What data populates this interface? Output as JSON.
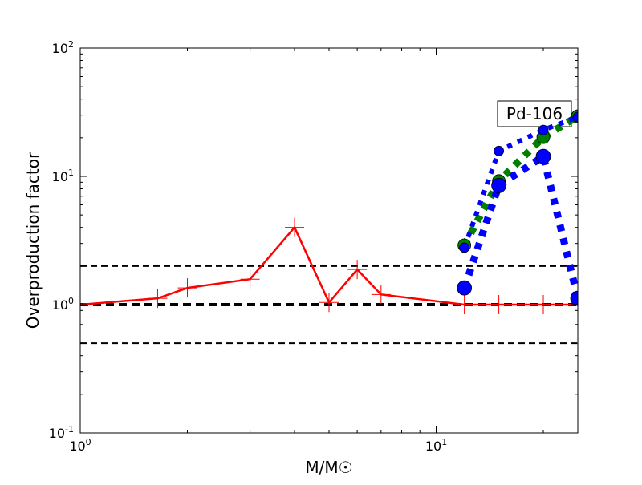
{
  "chart_data": {
    "type": "line",
    "xlabel": "M/M☉",
    "ylabel": "Overproduction factor",
    "xscale": "log",
    "yscale": "log",
    "xlim": [
      1,
      25
    ],
    "ylim": [
      0.1,
      100
    ],
    "xticks": [
      {
        "v": 1,
        "base": "10",
        "exp": "0"
      },
      {
        "v": 10,
        "base": "10",
        "exp": "1"
      }
    ],
    "yticks": [
      {
        "v": 0.1,
        "base": "10",
        "exp": "-1"
      },
      {
        "v": 1,
        "base": "10",
        "exp": "0"
      },
      {
        "v": 10,
        "base": "10",
        "exp": "1"
      },
      {
        "v": 100,
        "base": "10",
        "exp": "2"
      }
    ],
    "grid": false,
    "annotation": "Pd-106",
    "reference_lines": [
      {
        "y": 0.5,
        "style": "dashed"
      },
      {
        "y": 1,
        "style": "dashed-thick"
      },
      {
        "y": 2,
        "style": "dashed"
      }
    ],
    "series": [
      {
        "color": "#ff0000",
        "style": "solid",
        "marker": "plus",
        "x": [
          1,
          1.65,
          2,
          3,
          4,
          5,
          6,
          7,
          12,
          15,
          20,
          25
        ],
        "y": [
          1.0,
          1.12,
          1.35,
          1.58,
          4.0,
          1.04,
          1.88,
          1.2,
          1.0,
          1.0,
          1.0,
          1.0
        ]
      },
      {
        "color": "#008000",
        "style": "dotted-thick",
        "marker": "circle",
        "x": [
          12,
          15,
          20,
          25
        ],
        "y": [
          2.9,
          9.2,
          20.2,
          29.4
        ]
      },
      {
        "color": "#0000ff",
        "style": "dotted",
        "marker": "circle-small",
        "x": [
          12,
          15,
          20,
          25
        ],
        "y": [
          2.78,
          15.8,
          23,
          29
        ]
      },
      {
        "color": "#0000ff",
        "style": "dotted-thick",
        "marker": "circle-large",
        "x": [
          12,
          15,
          20,
          25
        ],
        "y": [
          1.35,
          8.5,
          14.3,
          1.12
        ]
      }
    ]
  }
}
